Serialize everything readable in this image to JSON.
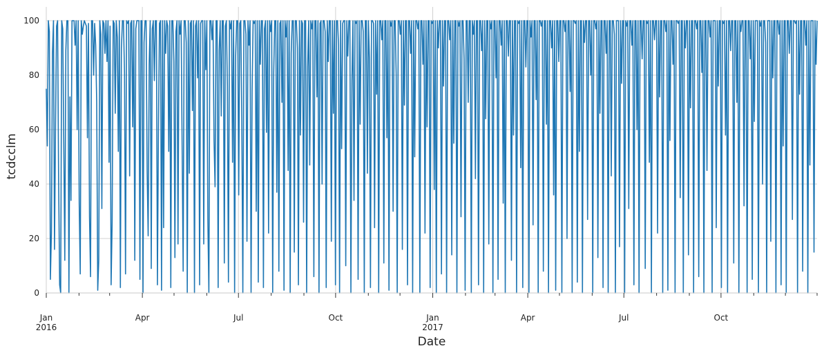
{
  "chart_data": {
    "type": "line",
    "xlabel": "Date",
    "ylabel": "tcdcclm",
    "x_range": [
      "2016-01-01",
      "2017-12-31"
    ],
    "ylim": [
      0,
      100
    ],
    "y_ticks": [
      0,
      20,
      40,
      60,
      80,
      100
    ],
    "x_ticks": [
      {
        "date": "2016-01-01",
        "label": "Jan",
        "sublabel": "2016"
      },
      {
        "date": "2016-04-01",
        "label": "Apr",
        "sublabel": ""
      },
      {
        "date": "2016-07-01",
        "label": "Jul",
        "sublabel": ""
      },
      {
        "date": "2016-10-01",
        "label": "Oct",
        "sublabel": ""
      },
      {
        "date": "2017-01-01",
        "label": "Jan",
        "sublabel": "2017"
      },
      {
        "date": "2017-04-01",
        "label": "Apr",
        "sublabel": ""
      },
      {
        "date": "2017-07-01",
        "label": "Jul",
        "sublabel": ""
      },
      {
        "date": "2017-10-01",
        "label": "Oct",
        "sublabel": ""
      }
    ],
    "grid": true,
    "line_color": "#1f77b4",
    "series": [
      {
        "sampling": "daily",
        "values": [
          75,
          54,
          100,
          96,
          5,
          22,
          88,
          100,
          16,
          62,
          98,
          100,
          41,
          3,
          0,
          100,
          97,
          55,
          12,
          89,
          100,
          100,
          0,
          72,
          34,
          100,
          100,
          100,
          91,
          100,
          60,
          100,
          33,
          7,
          100,
          95,
          98,
          100,
          99,
          98,
          57,
          99,
          28,
          6,
          100,
          100,
          80,
          99,
          91,
          70,
          1,
          12,
          100,
          95,
          31,
          100,
          99,
          88,
          100,
          85,
          100,
          48,
          98,
          3,
          26,
          100,
          99,
          66,
          100,
          94,
          52,
          100,
          2,
          90,
          100,
          100,
          81,
          7,
          100,
          99,
          100,
          43,
          99,
          100,
          61,
          100,
          12,
          97,
          100,
          100,
          100,
          5,
          100,
          100,
          0,
          92,
          100,
          100,
          45,
          21,
          84,
          100,
          9,
          97,
          100,
          78,
          100,
          100,
          3,
          60,
          99,
          100,
          1,
          100,
          24,
          100,
          88,
          100,
          98,
          52,
          100,
          2,
          100,
          100,
          85,
          13,
          96,
          100,
          18,
          100,
          95,
          100,
          54,
          8,
          100,
          100,
          92,
          0,
          100,
          44,
          99,
          100,
          67,
          100,
          0,
          98,
          100,
          79,
          100,
          3,
          99,
          100,
          100,
          18,
          100,
          82,
          100,
          27,
          0,
          100,
          100,
          93,
          100,
          56,
          39,
          100,
          100,
          2,
          89,
          100,
          65,
          100,
          100,
          11,
          98,
          100,
          76,
          4,
          100,
          97,
          100,
          48,
          100,
          0,
          87,
          100,
          100,
          36,
          99,
          100,
          63,
          0,
          100,
          100,
          95,
          19,
          100,
          91,
          100,
          0,
          74,
          100,
          99,
          100,
          30,
          100,
          4,
          100,
          84,
          100,
          100,
          2,
          97,
          100,
          59,
          100,
          22,
          100,
          96,
          100,
          0,
          81,
          100,
          100,
          37,
          100,
          8,
          99,
          100,
          70,
          100,
          1,
          100,
          94,
          100,
          45,
          100,
          0,
          88,
          100,
          100,
          15,
          100,
          100,
          90,
          3,
          100,
          58,
          100,
          99,
          26,
          100,
          100,
          0,
          83,
          100,
          47,
          100,
          97,
          100,
          6,
          100,
          100,
          72,
          100,
          0,
          99,
          100,
          40,
          100,
          100,
          96,
          2,
          100,
          85,
          100,
          100,
          19,
          100,
          66,
          100,
          3,
          100,
          100,
          91,
          0,
          100,
          53,
          99,
          100,
          100,
          10,
          100,
          87,
          100,
          100,
          0,
          78,
          100,
          34,
          100,
          99,
          100,
          5,
          100,
          62,
          100,
          100,
          96,
          0,
          100,
          100,
          44,
          100,
          86,
          2,
          100,
          100,
          99,
          24,
          100,
          73,
          100,
          0,
          100,
          100,
          93,
          100,
          11,
          100,
          100,
          57,
          100,
          1,
          100,
          98,
          100,
          30,
          100,
          100,
          80,
          0,
          100,
          100,
          95,
          100,
          16,
          100,
          69,
          100,
          100,
          3,
          100,
          100,
          88,
          100,
          0,
          100,
          50,
          100,
          100,
          97,
          100,
          0,
          100,
          100,
          84,
          100,
          22,
          100,
          61,
          100,
          100,
          2,
          100,
          99,
          100,
          38,
          100,
          0,
          100,
          90,
          100,
          100,
          7,
          100,
          76,
          100,
          100,
          0,
          100,
          100,
          93,
          100,
          14,
          100,
          55,
          100,
          100,
          0,
          100,
          98,
          100,
          28,
          100,
          100,
          86,
          1,
          100,
          100,
          70,
          100,
          100,
          0,
          100,
          95,
          100,
          42,
          100,
          100,
          3,
          100,
          100,
          89,
          100,
          0,
          100,
          64,
          100,
          100,
          18,
          100,
          97,
          100,
          0,
          100,
          100,
          79,
          100,
          5,
          100,
          100,
          91,
          100,
          33,
          100,
          0,
          100,
          100,
          87,
          100,
          100,
          12,
          100,
          58,
          100,
          100,
          0,
          100,
          99,
          100,
          46,
          100,
          2,
          100,
          100,
          83,
          100,
          100,
          0,
          100,
          94,
          100,
          25,
          100,
          100,
          71,
          100,
          0,
          100,
          100,
          98,
          100,
          8,
          100,
          100,
          62,
          100,
          0,
          100,
          100,
          90,
          100,
          36,
          100,
          1,
          100,
          100,
          85,
          100,
          100,
          0,
          100,
          100,
          96,
          100,
          20,
          100,
          100,
          74,
          100,
          0,
          100,
          100,
          99,
          100,
          4,
          100,
          52,
          100,
          100,
          0,
          100,
          92,
          100,
          100,
          27,
          100,
          100,
          80,
          100,
          0,
          100,
          100,
          97,
          100,
          13,
          100,
          66,
          100,
          100,
          2,
          100,
          100,
          88,
          100,
          0,
          100,
          100,
          43,
          100,
          100,
          95,
          0,
          100,
          100,
          100,
          17,
          100,
          77,
          100,
          100,
          0,
          100,
          98,
          100,
          31,
          100,
          100,
          91,
          100,
          3,
          100,
          100,
          60,
          100,
          0,
          100,
          100,
          86,
          100,
          100,
          9,
          100,
          99,
          100,
          48,
          100,
          0,
          100,
          100,
          93,
          100,
          100,
          22,
          100,
          72,
          100,
          100,
          0,
          100,
          100,
          96,
          100,
          1,
          100,
          56,
          100,
          100,
          84,
          100,
          0,
          100,
          100,
          99,
          100,
          35,
          100,
          100,
          0,
          100,
          90,
          100,
          100,
          14,
          100,
          68,
          100,
          100,
          0,
          100,
          100,
          97,
          100,
          6,
          100,
          100,
          81,
          100,
          0,
          100,
          100,
          45,
          100,
          100,
          94,
          100,
          0,
          100,
          100,
          100,
          24,
          100,
          76,
          100,
          100,
          2,
          100,
          99,
          100,
          58,
          100,
          0,
          100,
          100,
          89,
          100,
          100,
          11,
          100,
          100,
          70,
          100,
          0,
          100,
          96,
          100,
          100,
          32,
          100,
          100,
          0,
          100,
          100,
          86,
          100,
          5,
          100,
          63,
          100,
          100,
          100,
          0,
          100,
          98,
          100,
          40,
          100,
          100,
          92,
          0,
          100,
          100,
          100,
          19,
          100,
          79,
          100,
          100,
          0,
          100,
          100,
          95,
          100,
          3,
          100,
          54,
          100,
          100,
          0,
          100,
          100,
          88,
          100,
          100,
          27,
          100,
          100,
          99,
          100,
          0,
          100,
          73,
          100,
          100,
          8,
          100,
          100,
          91,
          100,
          0,
          100,
          47,
          100,
          100,
          100,
          15,
          100,
          84,
          100
        ]
      }
    ]
  }
}
